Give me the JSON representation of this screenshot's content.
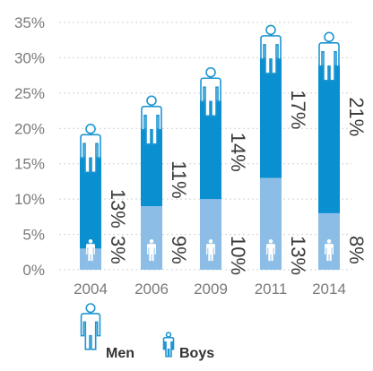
{
  "chart_data": {
    "type": "bar",
    "stacked": true,
    "categories": [
      "2004",
      "2006",
      "2009",
      "2011",
      "2014"
    ],
    "ylim": [
      0,
      35
    ],
    "yticks": [
      "0%",
      "5%",
      "10%",
      "15%",
      "20%",
      "25%",
      "30%",
      "35%"
    ],
    "ytick_values": [
      0,
      5,
      10,
      15,
      20,
      25,
      30,
      35
    ],
    "grid": true,
    "series": [
      {
        "name": "Boys",
        "values": [
          3,
          9,
          10,
          13,
          8
        ],
        "labels": [
          "3%",
          "9%",
          "10%",
          "13%",
          "8%"
        ],
        "color": "#8bbde6"
      },
      {
        "name": "Men",
        "values": [
          13,
          11,
          14,
          17,
          21
        ],
        "labels": [
          "13%",
          "11%",
          "14%",
          "17%",
          "21%"
        ],
        "color": "#0a8fd0"
      }
    ],
    "legend": {
      "position": "bottom-left",
      "items": [
        {
          "name": "Men",
          "icon": "man-icon"
        },
        {
          "name": "Boys",
          "icon": "boy-icon"
        }
      ]
    }
  }
}
